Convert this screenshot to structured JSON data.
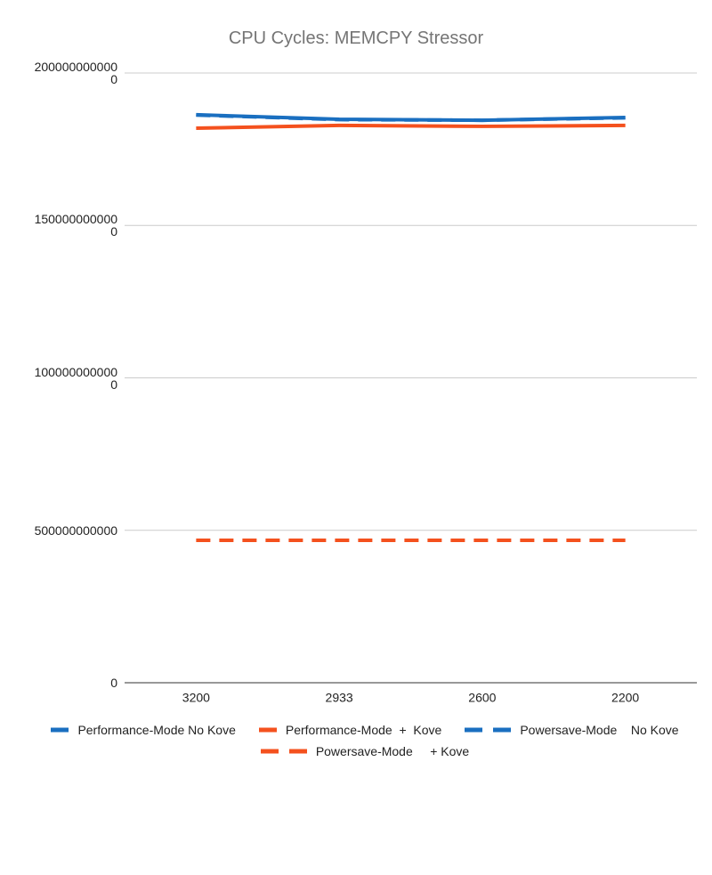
{
  "chart_data": {
    "type": "line",
    "title": "CPU Cycles: MEMCPY Stressor",
    "categories": [
      "3200",
      "2933",
      "2600",
      "2200"
    ],
    "series": [
      {
        "name": "Performance-Mode No Kove",
        "color": "#1a6fc0",
        "style": "solid",
        "values": [
          1863000000000,
          1848000000000,
          1845000000000,
          1854000000000
        ]
      },
      {
        "name": "Performance-Mode  +  Kove",
        "color": "#f4511e",
        "style": "solid",
        "values": [
          1819000000000,
          1828000000000,
          1825000000000,
          1828000000000
        ]
      },
      {
        "name": "Powersave-Mode    No Kove",
        "color": "#1a6fc0",
        "style": "dashed",
        "values": [
          1862000000000,
          1847000000000,
          1845000000000,
          1853000000000
        ]
      },
      {
        "name": "Powersave-Mode     + Kove",
        "color": "#f4511e",
        "style": "dashed",
        "values": [
          467000000000,
          467000000000,
          467000000000,
          467000000000
        ]
      }
    ],
    "ylim": [
      0,
      2000000000000
    ],
    "yticks": [
      0,
      500000000000,
      1000000000000,
      1500000000000,
      2000000000000
    ],
    "grid": true,
    "legend": "bottom"
  }
}
